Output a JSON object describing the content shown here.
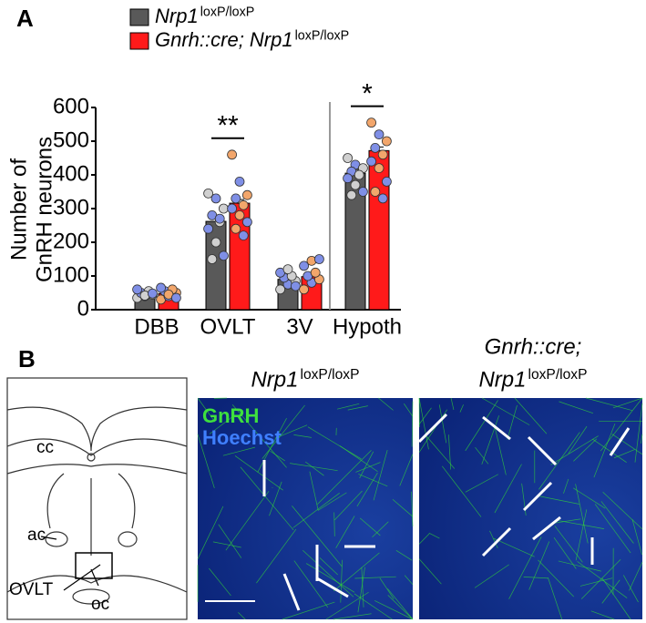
{
  "chart_data": {
    "type": "bar",
    "panel_label": "A",
    "y_label_lines": [
      "Number of",
      "GnRH neurons"
    ],
    "categories": [
      "DBB",
      "OVLT",
      "3V",
      "Hypoth"
    ],
    "ylim": [
      0,
      600
    ],
    "yticks": [
      0,
      100,
      200,
      300,
      400,
      500,
      600
    ],
    "series": [
      {
        "name": "Nrp1",
        "name_superscript": "loxP/loxP",
        "color": "#595959",
        "point_colors": [
          "#d0d0d0",
          "#7f8fe6"
        ],
        "values": [
          45,
          262,
          90,
          405
        ],
        "points": [
          [
            35,
            40,
            45,
            50,
            55,
            60,
            42,
            48
          ],
          [
            345,
            330,
            300,
            280,
            260,
            240,
            200,
            160,
            150,
            270
          ],
          [
            60,
            75,
            85,
            95,
            100,
            110,
            120,
            70
          ],
          [
            450,
            430,
            420,
            410,
            400,
            390,
            370,
            350,
            340
          ]
        ]
      },
      {
        "name": "Gnrh::cre; Nrp1",
        "name_superscript": "loxP/loxP",
        "color": "#ff1a1a",
        "point_colors": [
          "#f2a66b",
          "#7f8fe6"
        ],
        "values": [
          48,
          316,
          98,
          472
        ],
        "points": [
          [
            30,
            40,
            50,
            55,
            60,
            65,
            45,
            35
          ],
          [
            460,
            380,
            340,
            330,
            310,
            300,
            280,
            260,
            240,
            220
          ],
          [
            60,
            80,
            90,
            100,
            110,
            130,
            145,
            150
          ],
          [
            555,
            520,
            500,
            480,
            460,
            440,
            420,
            380,
            350,
            330
          ]
        ]
      }
    ],
    "annotations": [
      {
        "category": 1,
        "text": "**"
      },
      {
        "category": 3,
        "text": "*"
      }
    ]
  },
  "panel_b": {
    "label": "B",
    "diagram_labels": {
      "cc": "cc",
      "ac": "ac",
      "ovlt": "OVLT",
      "oc": "oc"
    },
    "images": [
      {
        "title_lines": [
          {
            "text": "Nrp1",
            "superscript": "loxP/loxP"
          }
        ],
        "channels": [
          "GnRH",
          "Hoechst"
        ]
      },
      {
        "title_lines": [
          {
            "text": "Gnrh::cre;",
            "superscript": null
          },
          {
            "text": "Nrp1",
            "superscript": "loxP/loxP"
          }
        ]
      }
    ]
  }
}
